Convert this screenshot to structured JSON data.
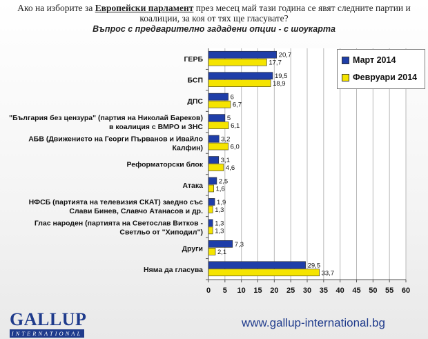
{
  "header": {
    "question_pre": "Ако на изборите за ",
    "question_highlight": "Европейски парламент",
    "question_post": " през месец май тази година се явят следните партии и",
    "question_line2": "коалиции, за коя от тях ще гласувате?",
    "subtitle": "Въпрос с предварително зададени опции - с шоукарта"
  },
  "colors": {
    "series1": "#1f3ea8",
    "series2": "#f5e400",
    "grid": "#b8b8b8",
    "axis": "#555555"
  },
  "chart_data": {
    "type": "bar",
    "orientation": "horizontal",
    "categories": [
      [
        "ГЕРБ"
      ],
      [
        "БСП"
      ],
      [
        "ДПС"
      ],
      [
        "\"България без цензура\" (партия на Николай Бареков)",
        "в коалиция с ВМРО и ЗНС"
      ],
      [
        "АБВ (Движението на Георги Първанов и Ивайло",
        "Калфин)"
      ],
      [
        "Реформаторски блок"
      ],
      [
        "Атака"
      ],
      [
        "НФСБ (партията на телевизия СКАТ) заедно със",
        "Слави Бинев, Славчо Атанасов и др."
      ],
      [
        "Глас народен (партията на Светослав Витков -",
        "Светльо от \"Хиподил\")"
      ],
      [
        "Други"
      ],
      [
        "Няма да гласува"
      ]
    ],
    "series": [
      {
        "name": "Март 2014",
        "values": [
          20.7,
          19.5,
          6,
          5,
          3.2,
          3.1,
          2.5,
          1.9,
          1.3,
          7.3,
          29.5
        ],
        "labels": [
          "20,7",
          "19,5",
          "6",
          "5",
          "3,2",
          "3,1",
          "2,5",
          "1,9",
          "1,3",
          "7,3",
          "29,5"
        ]
      },
      {
        "name": "Февруари 2014",
        "values": [
          17.7,
          18.9,
          6.7,
          6.1,
          6.0,
          4.6,
          1.6,
          1.3,
          1.3,
          2.1,
          33.7
        ],
        "labels": [
          "17,7",
          "18,9",
          "6,7",
          "6,1",
          "6,0",
          "4,6",
          "1,6",
          "1,3",
          "1,3",
          "2,1",
          "33,7"
        ]
      }
    ],
    "xlim": [
      0,
      60
    ],
    "xticks": [
      "0",
      "5",
      "10",
      "15",
      "20",
      "25",
      "30",
      "35",
      "40",
      "45",
      "50",
      "55",
      "60"
    ],
    "grid": true,
    "legend": "top-right"
  },
  "footer": {
    "logo_word": "GALLUP",
    "logo_sub": "INTERNATIONAL",
    "url": "www.gallup-international.bg"
  }
}
